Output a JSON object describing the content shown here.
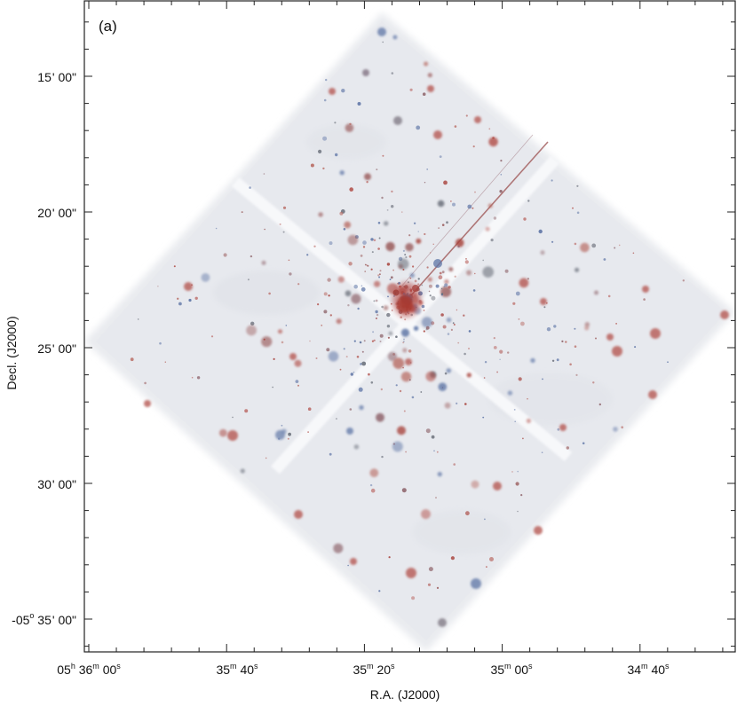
{
  "panel_label": "(a)",
  "axes": {
    "x_title": "R.A. (J2000)",
    "y_title": "Decl. (J2000)",
    "x_ticks": [
      {
        "h": "05",
        "m": "36",
        "s": "00"
      },
      {
        "h": "",
        "m": "35",
        "s": "40"
      },
      {
        "h": "",
        "m": "35",
        "s": "20"
      },
      {
        "h": "",
        "m": "35",
        "s": "00"
      },
      {
        "h": "",
        "m": "34",
        "s": "40"
      }
    ],
    "y_ticks": [
      {
        "d": "",
        "m": "15",
        "s": "00"
      },
      {
        "d": "",
        "m": "20",
        "s": "00"
      },
      {
        "d": "",
        "m": "25",
        "s": "00"
      },
      {
        "d": "",
        "m": "30",
        "s": "00"
      },
      {
        "d": "-05",
        "m": "35",
        "s": "00"
      }
    ]
  },
  "image": {
    "description_colors": {
      "background": "#ebedf1",
      "red_sources": "#b2504a",
      "blue_sources": "#5d74a5",
      "dark_sources": "#6a6f7a"
    }
  }
}
